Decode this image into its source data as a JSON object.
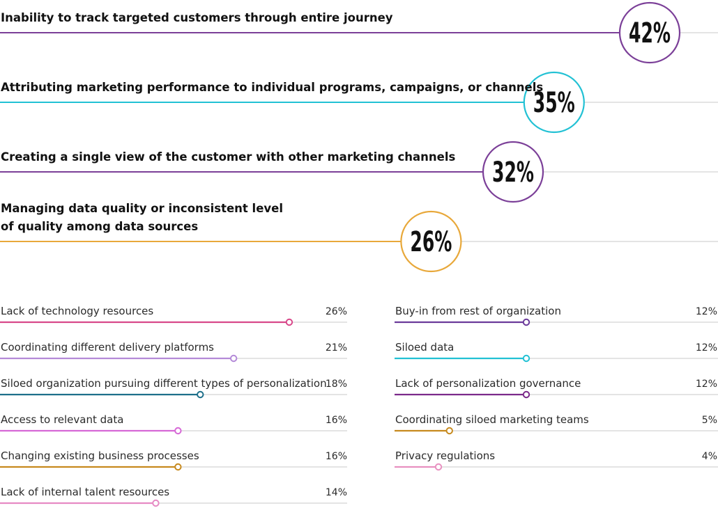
{
  "chart_data": {
    "type": "bar",
    "top_items": [
      {
        "label_lines": [
          "Inability to track targeted customers through entire journey"
        ],
        "value": 42,
        "value_label": "42%",
        "color": "#7b3f98"
      },
      {
        "label_lines": [
          "Attributing marketing performance to individual programs, campaigns, or channels"
        ],
        "value": 35,
        "value_label": "35%",
        "color": "#22c1d4"
      },
      {
        "label_lines": [
          "Creating a single view of the customer with other marketing channels"
        ],
        "value": 32,
        "value_label": "32%",
        "color": "#7b3f98"
      },
      {
        "label_lines": [
          "Managing data quality or inconsistent level",
          "of quality among data sources"
        ],
        "value": 26,
        "value_label": "26%",
        "color": "#e8a83a"
      }
    ],
    "left_items": [
      {
        "label": "Lack of technology resources",
        "value": 26,
        "value_label": "26%",
        "color": "#d8488a"
      },
      {
        "label": "Coordinating different delivery platforms",
        "value": 21,
        "value_label": "21%",
        "color": "#b48ad8"
      },
      {
        "label": "Siloed organization pursuing different types of personalization",
        "value": 18,
        "value_label": "18%",
        "color": "#1d6f8a"
      },
      {
        "label": "Access to relevant data",
        "value": 16,
        "value_label": "16%",
        "color": "#d668d6"
      },
      {
        "label": "Changing existing business processes",
        "value": 16,
        "value_label": "16%",
        "color": "#c78a1e"
      },
      {
        "label": "Lack of internal talent resources",
        "value": 14,
        "value_label": "14%",
        "color": "#e68ac4"
      }
    ],
    "right_items": [
      {
        "label": "Buy-in from rest of organization",
        "value": 12,
        "value_label": "12%",
        "color": "#6a3a9a"
      },
      {
        "label": "Siloed data",
        "value": 12,
        "value_label": "12%",
        "color": "#22c1d4"
      },
      {
        "label": "Lack of personalization governance",
        "value": 12,
        "value_label": "12%",
        "color": "#7b2a8a"
      },
      {
        "label": "Coordinating siloed marketing teams",
        "value": 5,
        "value_label": "5%",
        "color": "#c78a1e"
      },
      {
        "label": "Privacy regulations",
        "value": 4,
        "value_label": "4%",
        "color": "#e890c0"
      }
    ],
    "track_color": "#dcdcdc",
    "axis_max": 42
  }
}
